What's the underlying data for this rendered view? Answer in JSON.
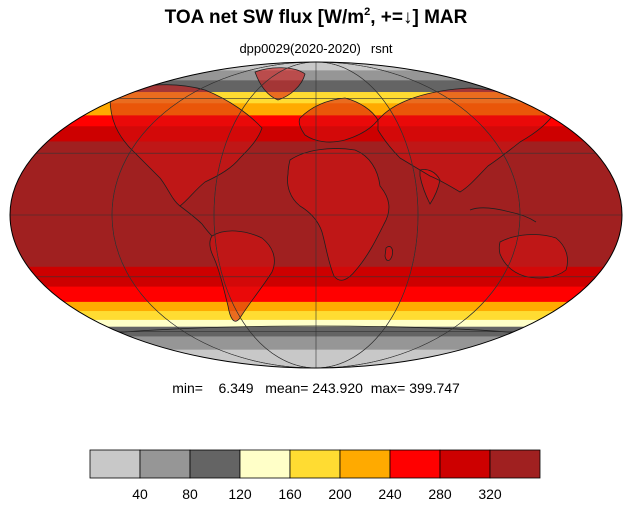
{
  "title": {
    "prefix": "TOA net SW flux [W/m",
    "superscript": "2",
    "suffix": ", +=↓]  MAR"
  },
  "subtitle": {
    "experiment": "dpp0029(2020-2020)",
    "variable": "rsnt"
  },
  "stats": {
    "min_label": "min=",
    "min_value": "6.349",
    "mean_label": "mean=",
    "mean_value": "243.920",
    "max_label": "max=",
    "max_value": "399.747"
  },
  "map": {
    "projection": "Mollweide",
    "description_bands": [
      {
        "lat_from": 90,
        "lat_to": 80,
        "class": 1
      },
      {
        "lat_from": 80,
        "lat_to": 72,
        "class": 2
      },
      {
        "lat_from": 72,
        "lat_to": 64,
        "class": 3
      },
      {
        "lat_from": 64,
        "lat_to": 57,
        "class": 5
      },
      {
        "lat_from": 57,
        "lat_to": 50,
        "class": 6
      },
      {
        "lat_from": 50,
        "lat_to": 44,
        "class": 7
      },
      {
        "lat_from": 44,
        "lat_to": 36,
        "class": 8
      },
      {
        "lat_from": 36,
        "lat_to": -25,
        "class": 9
      },
      {
        "lat_from": -25,
        "lat_to": -35,
        "class": 8
      },
      {
        "lat_from": -35,
        "lat_to": -43,
        "class": 7
      },
      {
        "lat_from": -43,
        "lat_to": -48,
        "class": 6
      },
      {
        "lat_from": -48,
        "lat_to": -53,
        "class": 5
      },
      {
        "lat_from": -53,
        "lat_to": -57,
        "class": 4
      },
      {
        "lat_from": -57,
        "lat_to": -63,
        "class": 3
      },
      {
        "lat_from": -63,
        "lat_to": -72,
        "class": 2
      },
      {
        "lat_from": -72,
        "lat_to": -90,
        "class": 1
      }
    ]
  },
  "colorbar": {
    "colors": [
      "#c8c8c8",
      "#969696",
      "#646464",
      "#ffffc8",
      "#ffdc32",
      "#ffaa00",
      "#ff0000",
      "#cd0000",
      "#a02020"
    ],
    "tick_labels": [
      "40",
      "80",
      "120",
      "160",
      "200",
      "240",
      "280",
      "320"
    ]
  }
}
